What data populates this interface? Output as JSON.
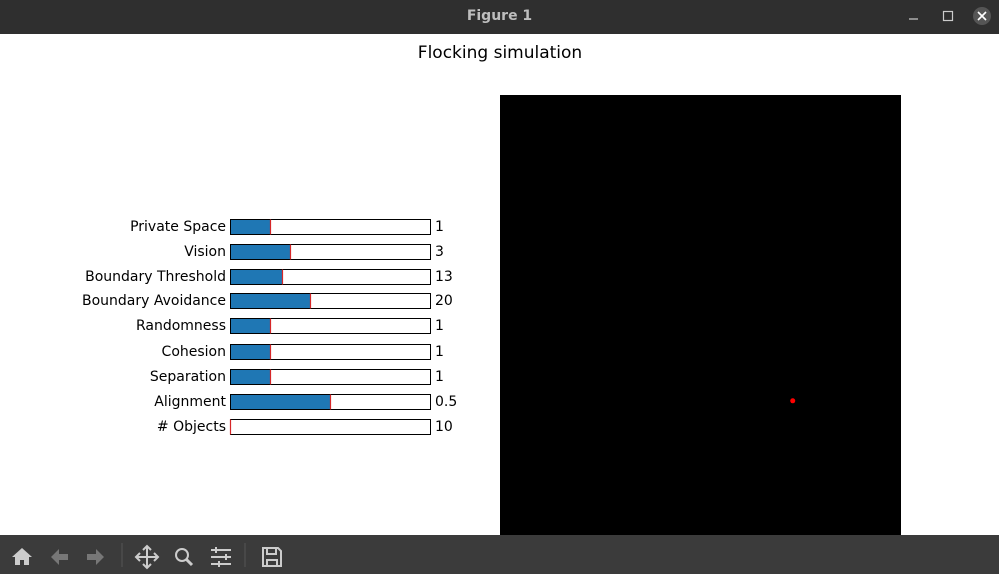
{
  "window": {
    "title": "Figure 1"
  },
  "figure": {
    "title": "Flocking simulation"
  },
  "sliders": [
    {
      "label": "Private Space",
      "value": 1,
      "min": 0,
      "max": 5
    },
    {
      "label": "Vision",
      "value": 3,
      "min": 0,
      "max": 10
    },
    {
      "label": "Boundary Threshold",
      "value": 13,
      "min": 0,
      "max": 50
    },
    {
      "label": "Boundary Avoidance",
      "value": 20,
      "min": 0,
      "max": 50
    },
    {
      "label": "Randomness",
      "value": 1,
      "min": 0,
      "max": 5
    },
    {
      "label": "Cohesion",
      "value": 1,
      "min": 0,
      "max": 5
    },
    {
      "label": "Separation",
      "value": 1,
      "min": 0,
      "max": 5
    },
    {
      "label": "Alignment",
      "value": 0.5,
      "min": 0,
      "max": 1
    },
    {
      "label": "# Objects",
      "value": 10,
      "min": 10,
      "max": 100
    }
  ],
  "simulation": {
    "xlim": [
      0,
      1
    ],
    "ylim": [
      0,
      1
    ],
    "points": [
      {
        "x": 0.73,
        "y": 0.305,
        "color": "#ff0000"
      }
    ]
  }
}
